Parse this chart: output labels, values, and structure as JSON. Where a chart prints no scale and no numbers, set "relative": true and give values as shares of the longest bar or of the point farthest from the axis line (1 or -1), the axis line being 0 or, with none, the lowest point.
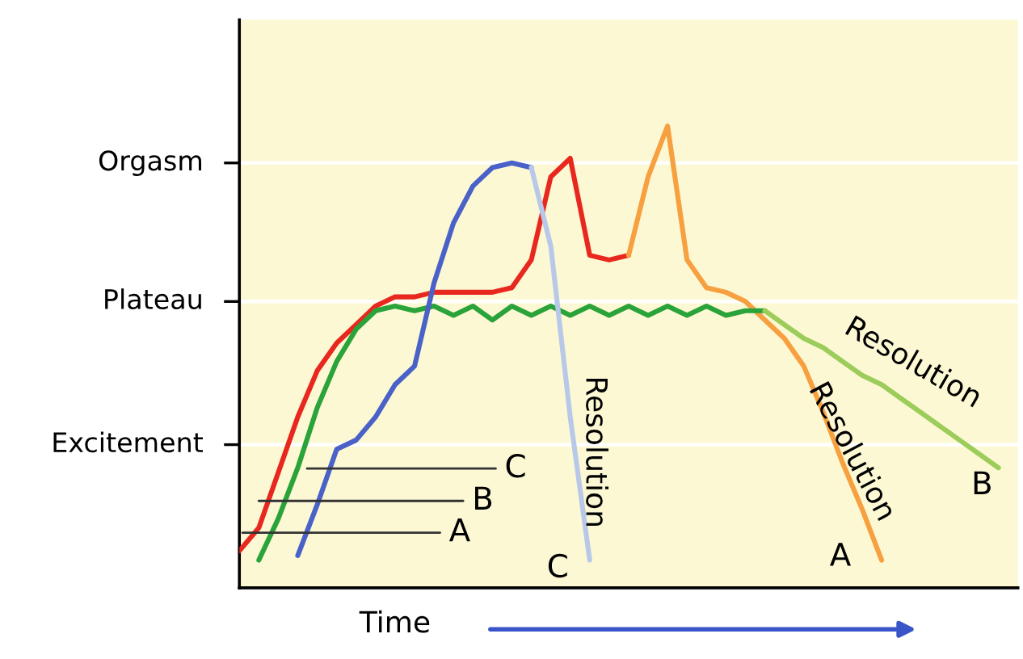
{
  "chart_data": {
    "type": "line",
    "xlabel": "Time",
    "relative": true,
    "categories": [
      null,
      null,
      null,
      null,
      null,
      null,
      null,
      null,
      null,
      null,
      null,
      null,
      null,
      null,
      null,
      null,
      null,
      null,
      null,
      null,
      null,
      null,
      null,
      null,
      null,
      null,
      null,
      null,
      null,
      null,
      null,
      null,
      null,
      null,
      null,
      null,
      null,
      null,
      null,
      null,
      null
    ],
    "tick_labels": false,
    "ref_lines": [
      {
        "axis": "y",
        "value": 0.31,
        "label": "Excitement",
        "color": "#ffffff"
      },
      {
        "axis": "y",
        "value": 0.62,
        "label": "Plateau",
        "color": "#ffffff"
      },
      {
        "axis": "y",
        "value": 0.92,
        "label": "Orgasm",
        "color": "#ffffff"
      }
    ],
    "series": [
      {
        "color": "#e8281e",
        "values": [
          0.08,
          0.13,
          0.25,
          0.37,
          0.47,
          0.53,
          0.57,
          0.61,
          0.63,
          0.63,
          0.64,
          0.64,
          0.64,
          0.64,
          0.65,
          0.71,
          0.89,
          0.93,
          0.72,
          0.71,
          0.72,
          null,
          null,
          null,
          null,
          null,
          null,
          null,
          null,
          null,
          null,
          null,
          null,
          null,
          null,
          null,
          null,
          null,
          null,
          null,
          null
        ]
      },
      {
        "color": "#f7a040",
        "values": [
          null,
          null,
          null,
          null,
          null,
          null,
          null,
          null,
          null,
          null,
          null,
          null,
          null,
          null,
          null,
          null,
          null,
          null,
          null,
          null,
          0.72,
          0.89,
          1.0,
          0.71,
          0.65,
          0.64,
          0.62,
          0.58,
          0.54,
          0.48,
          0.38,
          0.27,
          0.17,
          0.06,
          null,
          null,
          null,
          null,
          null,
          null,
          null
        ]
      },
      {
        "color": "#2aa33a",
        "values": [
          null,
          0.06,
          0.15,
          0.26,
          0.39,
          0.49,
          0.56,
          0.6,
          0.61,
          0.6,
          0.61,
          0.59,
          0.61,
          0.58,
          0.61,
          0.59,
          0.61,
          0.59,
          0.61,
          0.59,
          0.61,
          0.59,
          0.61,
          0.59,
          0.61,
          0.59,
          0.6,
          0.6,
          null,
          null,
          null,
          null,
          null,
          null,
          null,
          null,
          null,
          null,
          null,
          null,
          null
        ]
      },
      {
        "color": "#9ccc5a",
        "values": [
          null,
          null,
          null,
          null,
          null,
          null,
          null,
          null,
          null,
          null,
          null,
          null,
          null,
          null,
          null,
          null,
          null,
          null,
          null,
          null,
          null,
          null,
          null,
          null,
          null,
          null,
          null,
          0.6,
          0.57,
          0.54,
          0.52,
          0.49,
          0.46,
          0.44,
          0.41,
          0.38,
          0.35,
          0.32,
          0.29,
          0.26,
          null
        ]
      },
      {
        "color": "#4a62c8",
        "values": [
          null,
          null,
          null,
          0.07,
          0.18,
          0.3,
          0.32,
          0.37,
          0.44,
          0.48,
          0.66,
          0.79,
          0.87,
          0.91,
          0.92,
          0.91,
          null,
          null,
          null,
          null,
          null,
          null,
          null,
          null,
          null,
          null,
          null,
          null,
          null,
          null,
          null,
          null,
          null,
          null,
          null,
          null,
          null,
          null,
          null,
          null,
          null
        ]
      },
      {
        "color": "#b8c8e8",
        "values": [
          null,
          null,
          null,
          null,
          null,
          null,
          null,
          null,
          null,
          null,
          null,
          null,
          null,
          null,
          null,
          0.91,
          0.74,
          0.37,
          0.06,
          null,
          null,
          null,
          null,
          null,
          null,
          null,
          null,
          null,
          null,
          null,
          null,
          null,
          null,
          null,
          null,
          null,
          null,
          null,
          null,
          null,
          null
        ]
      }
    ],
    "annotations": [
      "A",
      "B",
      "C",
      "C",
      "A",
      "B",
      "Resolution",
      "Resolution",
      "Resolution"
    ]
  }
}
